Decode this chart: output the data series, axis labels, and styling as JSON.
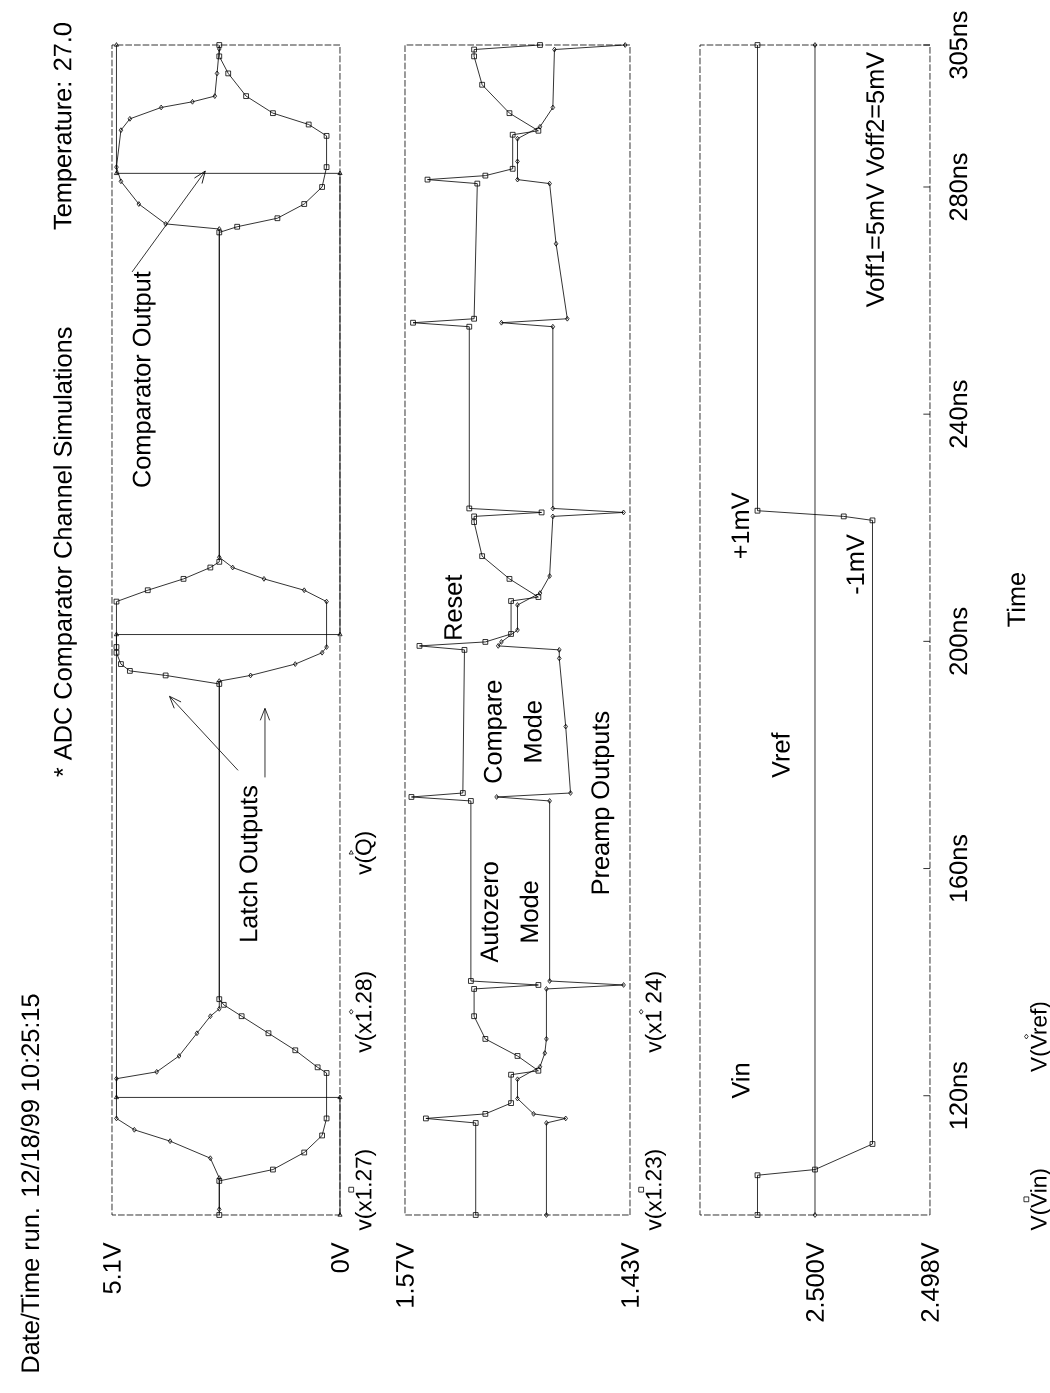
{
  "chart_data": [
    {
      "type": "line",
      "orientation": "horizontal",
      "title": "* ADC Comparator Channel Simulations",
      "annotations": [
        "Date/Time run. 12/18/99  10:25:15",
        "Temperature: 27.0",
        "Comparator Output",
        "Latch Outputs"
      ],
      "xlim": [
        5.1,
        0
      ],
      "ylim": [
        99,
        305
      ],
      "xticks": [
        {
          "value": 5.1,
          "label": "5.1V"
        },
        {
          "value": 0,
          "label": "0V"
        }
      ],
      "tick_labels": "x",
      "legend": "right",
      "line_style": "solid",
      "grid": false,
      "series": [
        {
          "name": "v(x1.27)",
          "color": "#000000",
          "marker": "square",
          "x": [
            99,
            105,
            107,
            110,
            113,
            116,
            124,
            125,
            128,
            131,
            134,
            136,
            137,
            192.5,
            194,
            194.8,
            196,
            198,
            199,
            207,
            209,
            211,
            213,
            214,
            272,
            273,
            274.5,
            277,
            280,
            283.5,
            289,
            291,
            293,
            296,
            300,
            303,
            305
          ],
          "values": [
            2.7,
            2.7,
            1.5,
            0.8,
            0.4,
            0.3,
            0.3,
            0.5,
            1.0,
            1.6,
            2.2,
            2.6,
            2.7,
            2.7,
            3.9,
            4.7,
            4.9,
            5.0,
            5.0,
            5.0,
            4.3,
            3.5,
            2.9,
            2.7,
            2.7,
            2.3,
            1.4,
            0.8,
            0.4,
            0.3,
            0.3,
            0.7,
            1.5,
            2.1,
            2.5,
            2.7,
            2.7
          ]
        },
        {
          "name": "v(x1.28)",
          "color": "#000000",
          "marker": "diamond",
          "x": [
            100,
            105.5,
            109,
            112,
            114,
            116,
            123,
            124.2,
            127,
            131,
            134,
            135.3,
            193,
            194,
            196,
            198,
            199,
            207,
            209,
            211,
            213,
            214.8,
            272.6,
            273.5,
            277,
            281,
            283.5,
            290,
            292,
            294,
            295,
            296,
            300,
            304.3
          ],
          "values": [
            2.7,
            2.7,
            2.9,
            3.8,
            4.6,
            5.0,
            5.0,
            4.1,
            3.6,
            3.2,
            2.9,
            2.7,
            2.7,
            2.0,
            1.0,
            0.4,
            0.3,
            0.3,
            0.8,
            1.7,
            2.4,
            2.7,
            2.7,
            3.9,
            4.5,
            4.9,
            5.0,
            4.9,
            4.7,
            4.0,
            3.3,
            2.8,
            2.75,
            2.7
          ]
        },
        {
          "name": "v(Q)",
          "color": "#000000",
          "marker": "triangle",
          "x": [
            99,
            119.7,
            119.7,
            201.2,
            201.2,
            282.4,
            282.4,
            305
          ],
          "values": [
            0,
            0,
            5.0,
            5.0,
            0,
            0,
            5.0,
            5.0
          ]
        }
      ]
    },
    {
      "type": "line",
      "orientation": "horizontal",
      "annotations": [
        "Reset",
        "Autozero Mode",
        "Compare Mode",
        "Preamp Outputs"
      ],
      "xlim": [
        1.57,
        1.43
      ],
      "ylim": [
        99,
        305
      ],
      "xticks": [
        {
          "value": 1.57,
          "label": "1.57V"
        },
        {
          "value": 1.43,
          "label": "1.43V"
        }
      ],
      "tick_labels": "x",
      "legend": "right",
      "line_style": "solid",
      "grid": false,
      "series": [
        {
          "name": "v(x1.23)",
          "color": "#000000",
          "marker": "square",
          "x": [
            99,
            115.2,
            116,
            116.8,
            118.7,
            123.7,
            124.4,
            127,
            130,
            134,
            138.8,
            139.5,
            140.2,
            171.9,
            172.6,
            173.3,
            198.5,
            199.2,
            199.9,
            201.3,
            207.1,
            207.8,
            211,
            215,
            221,
            222,
            222.7,
            223.4,
            255.4,
            256.1,
            256.8,
            280.6,
            281.3,
            282,
            283.2,
            289.2,
            289.9,
            293,
            298,
            303,
            304.2,
            305
          ],
          "values": [
            1.526,
            1.526,
            1.557,
            1.52,
            1.504,
            1.504,
            1.487,
            1.5,
            1.52,
            1.527,
            1.527,
            1.487,
            1.529,
            1.529,
            1.566,
            1.534,
            1.533,
            1.561,
            1.52,
            1.504,
            1.504,
            1.487,
            1.505,
            1.522,
            1.527,
            1.527,
            1.485,
            1.53,
            1.53,
            1.565,
            1.527,
            1.525,
            1.556,
            1.52,
            1.503,
            1.503,
            1.487,
            1.505,
            1.522,
            1.527,
            1.527,
            1.486
          ]
        },
        {
          "name": "v(x1 24)",
          "color": "#000000",
          "marker": "diamond",
          "x": [
            99,
            115.2,
            116,
            116.8,
            119.5,
            122.9,
            125.1,
            127.5,
            130,
            138.8,
            139.5,
            140.2,
            171.9,
            172.6,
            173.3,
            185,
            197,
            198.5,
            199.2,
            199.9,
            202,
            206.4,
            208.5,
            211.5,
            222,
            222.7,
            223.4,
            255.4,
            256.1,
            256.8,
            270,
            280.6,
            281.3,
            284.5,
            288.5,
            290.6,
            294,
            304.2,
            305
          ],
          "values": [
            1.482,
            1.482,
            1.47,
            1.49,
            1.5,
            1.5,
            1.486,
            1.483,
            1.482,
            1.482,
            1.434,
            1.48,
            1.48,
            1.513,
            1.467,
            1.47,
            1.474,
            1.474,
            1.512,
            1.51,
            1.5,
            1.5,
            1.486,
            1.48,
            1.478,
            1.434,
            1.478,
            1.478,
            1.51,
            1.469,
            1.476,
            1.48,
            1.5,
            1.5,
            1.5,
            1.486,
            1.478,
            1.477,
            1.433
          ]
        }
      ]
    },
    {
      "type": "line",
      "orientation": "horizontal",
      "ylabel": "Time",
      "annotations": [
        "Voff1=5mV  Voff2=5mV",
        "Vin",
        "Vref",
        "+1mV",
        "-1mV"
      ],
      "xlim": [
        2.502,
        2.498
      ],
      "ylim": [
        99,
        305
      ],
      "xticks": [
        {
          "value": 2.5,
          "label": "2.500V"
        },
        {
          "value": 2.498,
          "label": "2.498V"
        }
      ],
      "yticks": [
        {
          "value": 120,
          "label": "120ns"
        },
        {
          "value": 160,
          "label": "160ns"
        },
        {
          "value": 200,
          "label": "200ns"
        },
        {
          "value": 240,
          "label": "240ns"
        },
        {
          "value": 280,
          "label": "280ns"
        },
        {
          "value": 305,
          "label": "305ns"
        }
      ],
      "legend": "right",
      "line_style": "solid",
      "grid": false,
      "series": [
        {
          "name": "V(Vin)",
          "color": "#000000",
          "marker": "square",
          "x": [
            99,
            106,
            107,
            111.5,
            221.3,
            222,
            223,
            305
          ],
          "values": [
            2.501,
            2.501,
            2.5,
            2.499,
            2.499,
            2.4995,
            2.501,
            2.501
          ]
        },
        {
          "name": "V(Vref)",
          "color": "#000000",
          "marker": "diamond",
          "x": [
            99,
            305
          ],
          "values": [
            2.5,
            2.5
          ]
        }
      ]
    }
  ]
}
